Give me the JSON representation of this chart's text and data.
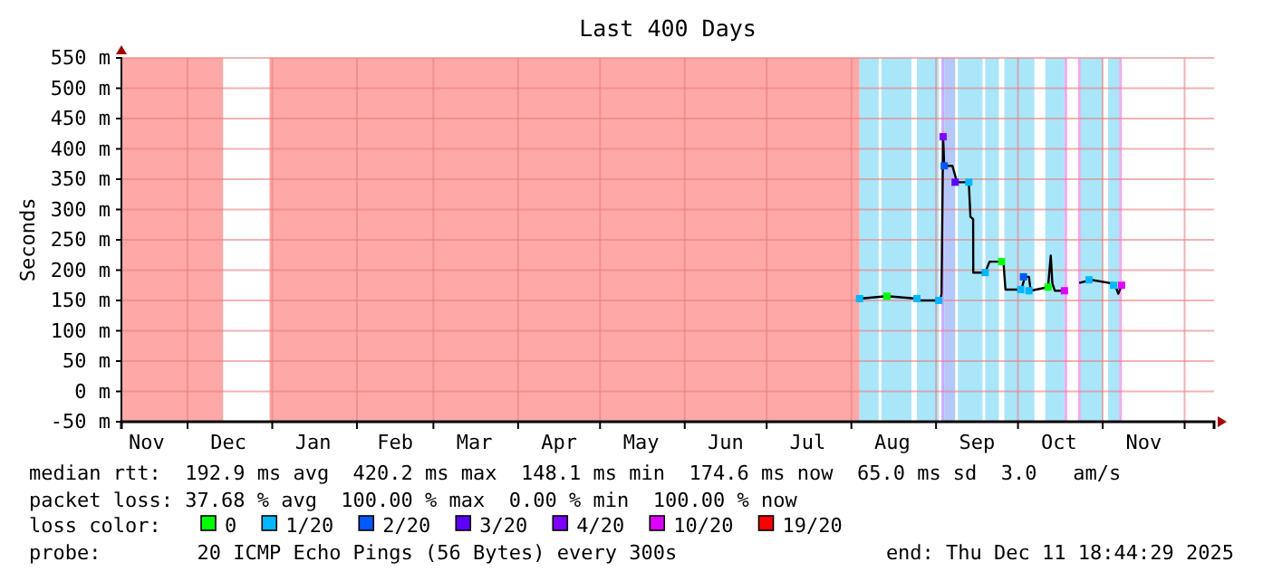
{
  "chart_data": {
    "type": "line",
    "title": "Last 400 Days",
    "ylabel": "Seconds",
    "xlim": [
      "2024-11-06T18:44",
      "2025-12-11T18:44"
    ],
    "xticks": [
      {
        "value": "2024-11-16",
        "label": "Nov"
      },
      {
        "value": "2024-12-01",
        "label": null
      },
      {
        "value": "2024-12-16",
        "label": "Dec"
      },
      {
        "value": "2025-01-01",
        "label": null
      },
      {
        "value": "2025-01-16",
        "label": "Jan"
      },
      {
        "value": "2025-02-01",
        "label": null
      },
      {
        "value": "2025-02-15",
        "label": "Feb"
      },
      {
        "value": "2025-03-01",
        "label": null
      },
      {
        "value": "2025-03-16",
        "label": "Mar"
      },
      {
        "value": "2025-04-01",
        "label": null
      },
      {
        "value": "2025-04-16",
        "label": "Apr"
      },
      {
        "value": "2025-05-01",
        "label": null
      },
      {
        "value": "2025-05-16",
        "label": "May"
      },
      {
        "value": "2025-06-01",
        "label": null
      },
      {
        "value": "2025-06-16",
        "label": "Jun"
      },
      {
        "value": "2025-07-01",
        "label": null
      },
      {
        "value": "2025-07-16",
        "label": "Jul"
      },
      {
        "value": "2025-08-01",
        "label": null
      },
      {
        "value": "2025-08-16",
        "label": "Aug"
      },
      {
        "value": "2025-09-01",
        "label": null
      },
      {
        "value": "2025-09-16",
        "label": "Sep"
      },
      {
        "value": "2025-10-01",
        "label": null
      },
      {
        "value": "2025-10-16",
        "label": "Oct"
      },
      {
        "value": "2025-11-01",
        "label": null
      },
      {
        "value": "2025-11-16",
        "label": "Nov"
      },
      {
        "value": "2025-12-01",
        "label": null
      }
    ],
    "ylim": [
      -50,
      550
    ],
    "yticks": [
      {
        "value": -50,
        "label": "-50 m"
      },
      {
        "value": 0,
        "label": "0 m"
      },
      {
        "value": 50,
        "label": "50 m"
      },
      {
        "value": 100,
        "label": "100 m"
      },
      {
        "value": 150,
        "label": "150 m"
      },
      {
        "value": 200,
        "label": "200 m"
      },
      {
        "value": 250,
        "label": "250 m"
      },
      {
        "value": 300,
        "label": "300 m"
      },
      {
        "value": 350,
        "label": "350 m"
      },
      {
        "value": 400,
        "label": "400 m"
      },
      {
        "value": 450,
        "label": "450 m"
      },
      {
        "value": 500,
        "label": "500 m"
      },
      {
        "value": 550,
        "label": "550 m"
      }
    ],
    "grid": true,
    "legend": "bottom",
    "legend_title": "loss color:",
    "marker": "square",
    "bands": [
      {
        "axis": "x",
        "from": "2024-11-06T18:44",
        "to": "2024-12-14",
        "color": "#ffa8a8"
      },
      {
        "axis": "x",
        "from": "2024-12-31",
        "to": "2025-08-04",
        "color": "#ffa8a8"
      },
      {
        "axis": "x",
        "from": "2025-08-04",
        "to": "2025-08-11",
        "color": "#aae6fa"
      },
      {
        "axis": "x",
        "from": "2025-08-12",
        "to": "2025-08-23",
        "color": "#aae6fa"
      },
      {
        "axis": "x",
        "from": "2025-08-25",
        "to": "2025-09-02",
        "color": "#aae6fa"
      },
      {
        "axis": "x",
        "from": "2025-09-03",
        "to": "2025-09-04",
        "color": "#c8aaff"
      },
      {
        "axis": "x",
        "from": "2025-09-04",
        "to": "2025-09-08",
        "color": "#b4c8fa"
      },
      {
        "axis": "x",
        "from": "2025-09-09",
        "to": "2025-09-18",
        "color": "#aae6fa"
      },
      {
        "axis": "x",
        "from": "2025-09-19",
        "to": "2025-09-24",
        "color": "#aae6fa"
      },
      {
        "axis": "x",
        "from": "2025-09-26",
        "to": "2025-10-07",
        "color": "#aae6fa"
      },
      {
        "axis": "x",
        "from": "2025-10-11",
        "to": "2025-10-18",
        "color": "#aae6fa"
      },
      {
        "axis": "x",
        "from": "2025-10-18",
        "to": "2025-10-19",
        "color": "#f0aaf0"
      },
      {
        "axis": "x",
        "from": "2025-10-23",
        "to": "2025-10-24",
        "color": "#f0aaf0"
      },
      {
        "axis": "x",
        "from": "2025-10-24",
        "to": "2025-11-01",
        "color": "#aae6fa"
      },
      {
        "axis": "x",
        "from": "2025-11-03",
        "to": "2025-11-07",
        "color": "#aae6fa"
      },
      {
        "axis": "x",
        "from": "2025-11-07",
        "to": "2025-11-08",
        "color": "#f0aaf0"
      }
    ],
    "series": [
      {
        "marker": "none",
        "color": "#000000",
        "x": [
          "2025-08-04",
          "2025-08-14",
          "2025-08-25",
          "2025-08-26",
          "2025-09-02T12:00",
          "2025-09-03",
          "2025-09-03T14:00",
          "2025-09-04",
          "2025-09-07",
          "2025-09-08T16:00",
          "2025-09-13",
          "2025-09-13T14:00",
          "2025-09-14T14:00",
          "2025-09-14T15:00",
          "2025-09-19",
          "2025-09-20T14:00",
          "2025-09-25T16:00",
          "2025-09-26T10:00",
          "2025-10-02T07:00",
          "2025-10-03T12:00",
          "2025-10-05",
          "2025-10-05T16:00",
          "2025-10-12",
          "2025-10-13",
          "2025-10-13T14:00",
          "2025-10-14T12:00",
          "2025-10-19",
          "2025-10-21",
          "2025-10-23T10:00",
          "2025-10-27T19:00",
          "2025-11-03T10:00",
          "2025-11-05T14:00",
          "2025-11-06T17:00",
          "2025-11-07T22:00"
        ],
        "values": [
          153,
          157,
          153,
          150,
          150,
          161,
          420,
          372,
          372,
          345,
          345,
          288,
          284,
          196,
          196,
          214,
          214,
          168,
          168,
          189,
          189,
          166,
          172,
          224,
          178,
          166,
          166,
          null,
          179,
          184,
          179,
          175,
          161,
          175
        ]
      },
      {
        "type": "scatter",
        "name": "0",
        "color": "#00ff00",
        "x": [
          "2025-08-14",
          "2025-09-25",
          "2025-10-12"
        ],
        "values": [
          157,
          214,
          172
        ]
      },
      {
        "type": "scatter",
        "name": "1/20",
        "color": "#00b8ff",
        "x": [
          "2025-08-04",
          "2025-08-25",
          "2025-09-02",
          "2025-09-13",
          "2025-09-19",
          "2025-10-02",
          "2025-10-05",
          "2025-10-27",
          "2025-11-05"
        ],
        "values": [
          153,
          153,
          150,
          345,
          196,
          168,
          166,
          184,
          175
        ]
      },
      {
        "type": "scatter",
        "name": "2/20",
        "color": "#0059ff",
        "x": [
          "2025-09-04",
          "2025-10-03"
        ],
        "values": [
          372,
          189
        ]
      },
      {
        "type": "scatter",
        "name": "3/20",
        "color": "#5e00ff",
        "x": [
          "2025-09-08"
        ],
        "values": [
          345
        ]
      },
      {
        "type": "scatter",
        "name": "4/20",
        "color": "#7e00ff",
        "x": [
          "2025-09-03T14:00"
        ],
        "values": [
          420
        ]
      },
      {
        "type": "scatter",
        "name": "10/20",
        "color": "#dd00ff",
        "x": [
          "2025-10-18",
          "2025-11-07T22:00"
        ],
        "values": [
          166,
          175
        ]
      },
      {
        "type": "scatter",
        "name": "19/20",
        "color": "#ff0000"
      }
    ],
    "annotations": [
      "median rtt:  192.9 ms avg  420.2 ms max  148.1 ms min  174.6 ms now  65.0 ms sd  3.0   am/s",
      "packet loss: 37.68 % avg  100.00 % max  0.00 % min  100.00 % now",
      "probe:        20 ICMP Echo Pings (56 Bytes) every 300s",
      "end: Thu Dec 11 18:44:29 2025"
    ]
  }
}
